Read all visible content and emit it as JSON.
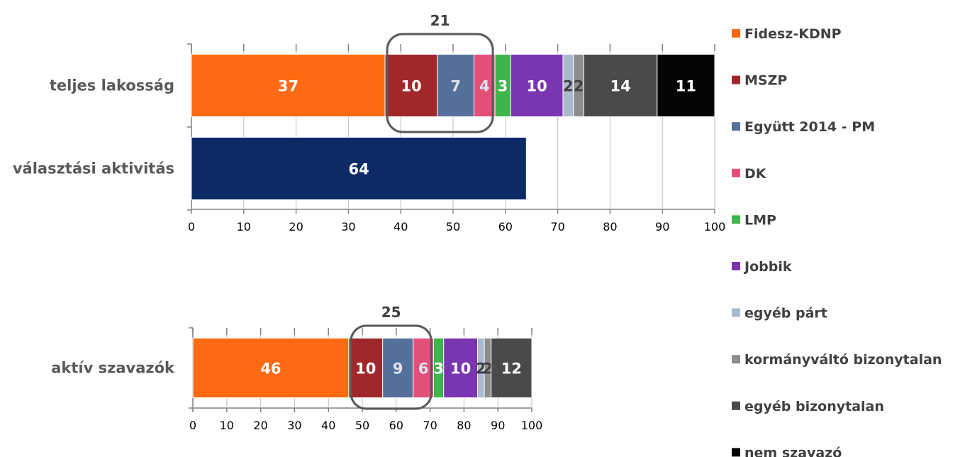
{
  "colors": {
    "Fidesz-KDNP": "#FF6A13",
    "MSZP": "#A0282B",
    "Együtt 2014 - PM": "#55709A",
    "DK": "#E2507A",
    "LMP": "#3DB54A",
    "Jobbik": "#7A35B0",
    "egyéb párt": "#A9B9D0",
    "kormányváltó bizonytalan": "#8C8C8C",
    "egyéb bizonytalan": "#4A4A4A",
    "nem szavazó": "#050505",
    "választási aktivitás": "#0C2A66"
  },
  "legend": {
    "placement": "right",
    "items": [
      "Fidesz-KDNP",
      "MSZP",
      "Együtt 2014 - PM",
      "DK",
      "LMP",
      "Jobbik",
      "egyéb párt",
      "kormányváltó bizonytalan",
      "egyéb bizonytalan",
      "nem szavazó"
    ]
  },
  "chart_data": [
    {
      "type": "bar",
      "orientation": "horizontal",
      "stacked": true,
      "categories": [
        "teljes lakosság",
        "választási aktivitás"
      ],
      "xlim": [
        0,
        100
      ],
      "xticks": [
        0,
        10,
        20,
        30,
        40,
        50,
        60,
        70,
        80,
        90,
        100
      ],
      "series": [
        {
          "name": "Fidesz-KDNP",
          "values": [
            37,
            null
          ]
        },
        {
          "name": "MSZP",
          "values": [
            10,
            null
          ]
        },
        {
          "name": "Együtt 2014 - PM",
          "values": [
            7,
            null
          ]
        },
        {
          "name": "DK",
          "values": [
            4,
            null
          ]
        },
        {
          "name": "LMP",
          "values": [
            3,
            null
          ]
        },
        {
          "name": "Jobbik",
          "values": [
            10,
            null
          ]
        },
        {
          "name": "egyéb párt",
          "values": [
            2,
            null
          ]
        },
        {
          "name": "kormányváltó bizonytalan",
          "values": [
            2,
            null
          ]
        },
        {
          "name": "egyéb bizonytalan",
          "values": [
            14,
            null
          ]
        },
        {
          "name": "nem szavazó",
          "values": [
            11,
            null
          ]
        },
        {
          "name": "választási aktivitás",
          "values": [
            null,
            64
          ]
        }
      ],
      "annotation": {
        "text": "21",
        "range": [
          37,
          58
        ]
      }
    },
    {
      "type": "bar",
      "orientation": "horizontal",
      "stacked": true,
      "categories": [
        "aktív szavazók"
      ],
      "xlim": [
        0,
        100
      ],
      "xticks": [
        0,
        10,
        20,
        30,
        40,
        50,
        60,
        70,
        80,
        90,
        100
      ],
      "series": [
        {
          "name": "Fidesz-KDNP",
          "values": [
            46
          ]
        },
        {
          "name": "MSZP",
          "values": [
            10
          ]
        },
        {
          "name": "Együtt 2014 - PM",
          "values": [
            9
          ]
        },
        {
          "name": "DK",
          "values": [
            6
          ]
        },
        {
          "name": "LMP",
          "values": [
            3
          ]
        },
        {
          "name": "Jobbik",
          "values": [
            10
          ]
        },
        {
          "name": "egyéb párt",
          "values": [
            2
          ]
        },
        {
          "name": "kormányváltó bizonytalan",
          "values": [
            2
          ]
        },
        {
          "name": "egyéb bizonytalan",
          "values": [
            12
          ]
        }
      ],
      "annotation": {
        "text": "25",
        "range": [
          46,
          71
        ]
      }
    }
  ]
}
